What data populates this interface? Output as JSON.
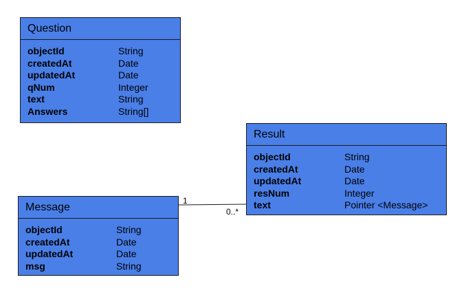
{
  "classes": {
    "question": {
      "name": "Question",
      "attributes": [
        {
          "name": "objectId",
          "type": "String"
        },
        {
          "name": "createdAt",
          "type": "Date"
        },
        {
          "name": "updatedAt",
          "type": "Date"
        },
        {
          "name": "qNum",
          "type": "Integer"
        },
        {
          "name": "text",
          "type": "String"
        },
        {
          "name": "Answers",
          "type": "String[]"
        }
      ]
    },
    "result": {
      "name": "Result",
      "attributes": [
        {
          "name": "objectId",
          "type": "String"
        },
        {
          "name": "createdAt",
          "type": "Date"
        },
        {
          "name": "updatedAt",
          "type": "Date"
        },
        {
          "name": "resNum",
          "type": "Integer"
        },
        {
          "name": "text",
          "type": "Pointer <Message>"
        }
      ]
    },
    "message": {
      "name": "Message",
      "attributes": [
        {
          "name": "objectId",
          "type": "String"
        },
        {
          "name": "createdAt",
          "type": "Date"
        },
        {
          "name": "updatedAt",
          "type": "Date"
        },
        {
          "name": "msg",
          "type": "String"
        }
      ]
    }
  },
  "association": {
    "source_multiplicity": "1",
    "target_multiplicity": "0..*"
  },
  "colors": {
    "class_fill": "#4a7fe8",
    "border": "#1a1a1a"
  }
}
